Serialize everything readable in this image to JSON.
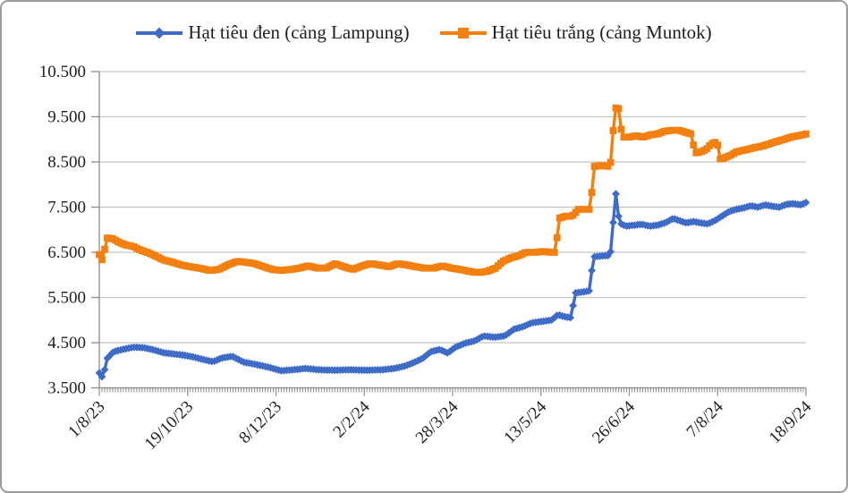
{
  "colors": {
    "black_pepper_series": "#3e6bc6",
    "white_pepper_series": "#f28010",
    "gridline": "#c3c3c3",
    "axis": "#8c8c8c",
    "text": "#1f1f1f",
    "frame_border": "#9b9b9b"
  },
  "chart_data": {
    "type": "line",
    "title": "",
    "xlabel": "",
    "ylabel": "",
    "legend_position": "top-center",
    "grid": "horizontal",
    "ylim": [
      3500,
      10500
    ],
    "y_step": 1000,
    "y_tick_labels": [
      "3.500",
      "4.500",
      "5.500",
      "6.500",
      "7.500",
      "8.500",
      "9.500",
      "10.500"
    ],
    "x_tick_labels": [
      "1/8/23",
      "19/10/23",
      "8/12/23",
      "2/2/24",
      "28/3/24",
      "13/5/24",
      "26/6/24",
      "7/8/24",
      "18/9/24"
    ],
    "x_axis_note": "daily price series from 1/8/23 to 18/9/24; points given as [fraction_of_x_range, price]",
    "series": [
      {
        "name": "Hạt tiêu đen (cảng Lampung)",
        "color": "#3e6bc6",
        "marker": "diamond",
        "points": [
          [
            0,
            3830
          ],
          [
            0.005,
            3720
          ],
          [
            0.011,
            4150
          ],
          [
            0.02,
            4300
          ],
          [
            0.033,
            4350
          ],
          [
            0.048,
            4400
          ],
          [
            0.062,
            4390
          ],
          [
            0.075,
            4350
          ],
          [
            0.09,
            4280
          ],
          [
            0.105,
            4250
          ],
          [
            0.121,
            4220
          ],
          [
            0.134,
            4180
          ],
          [
            0.149,
            4120
          ],
          [
            0.161,
            4080
          ],
          [
            0.173,
            4160
          ],
          [
            0.188,
            4200
          ],
          [
            0.204,
            4070
          ],
          [
            0.221,
            4020
          ],
          [
            0.239,
            3960
          ],
          [
            0.257,
            3880
          ],
          [
            0.274,
            3900
          ],
          [
            0.292,
            3930
          ],
          [
            0.311,
            3900
          ],
          [
            0.333,
            3890
          ],
          [
            0.355,
            3900
          ],
          [
            0.378,
            3890
          ],
          [
            0.4,
            3900
          ],
          [
            0.418,
            3930
          ],
          [
            0.434,
            3990
          ],
          [
            0.448,
            4080
          ],
          [
            0.458,
            4160
          ],
          [
            0.469,
            4300
          ],
          [
            0.482,
            4350
          ],
          [
            0.493,
            4270
          ],
          [
            0.504,
            4400
          ],
          [
            0.518,
            4490
          ],
          [
            0.531,
            4540
          ],
          [
            0.544,
            4650
          ],
          [
            0.559,
            4620
          ],
          [
            0.574,
            4650
          ],
          [
            0.587,
            4800
          ],
          [
            0.599,
            4850
          ],
          [
            0.612,
            4940
          ],
          [
            0.626,
            4970
          ],
          [
            0.64,
            5000
          ],
          [
            0.649,
            5120
          ],
          [
            0.657,
            5080
          ],
          [
            0.668,
            5050
          ],
          [
            0.673,
            5600
          ],
          [
            0.683,
            5620
          ],
          [
            0.694,
            5650
          ],
          [
            0.699,
            6400
          ],
          [
            0.711,
            6420
          ],
          [
            0.723,
            6430
          ],
          [
            0.731,
            7800
          ],
          [
            0.736,
            7150
          ],
          [
            0.745,
            7080
          ],
          [
            0.756,
            7100
          ],
          [
            0.768,
            7120
          ],
          [
            0.779,
            7080
          ],
          [
            0.79,
            7100
          ],
          [
            0.802,
            7160
          ],
          [
            0.812,
            7250
          ],
          [
            0.821,
            7200
          ],
          [
            0.831,
            7150
          ],
          [
            0.841,
            7180
          ],
          [
            0.851,
            7150
          ],
          [
            0.861,
            7130
          ],
          [
            0.871,
            7200
          ],
          [
            0.881,
            7300
          ],
          [
            0.891,
            7400
          ],
          [
            0.901,
            7450
          ],
          [
            0.911,
            7480
          ],
          [
            0.922,
            7530
          ],
          [
            0.932,
            7500
          ],
          [
            0.942,
            7550
          ],
          [
            0.952,
            7520
          ],
          [
            0.962,
            7500
          ],
          [
            0.972,
            7560
          ],
          [
            0.982,
            7580
          ],
          [
            0.992,
            7550
          ],
          [
            1,
            7600
          ]
        ]
      },
      {
        "name": "Hạt tiêu trắng (cảng Muntok)",
        "color": "#f28010",
        "marker": "square",
        "points": [
          [
            0,
            6450
          ],
          [
            0.005,
            6300
          ],
          [
            0.01,
            6820
          ],
          [
            0.019,
            6800
          ],
          [
            0.028,
            6720
          ],
          [
            0.038,
            6660
          ],
          [
            0.048,
            6630
          ],
          [
            0.058,
            6550
          ],
          [
            0.068,
            6500
          ],
          [
            0.078,
            6430
          ],
          [
            0.091,
            6330
          ],
          [
            0.104,
            6280
          ],
          [
            0.116,
            6220
          ],
          [
            0.129,
            6180
          ],
          [
            0.142,
            6150
          ],
          [
            0.156,
            6100
          ],
          [
            0.169,
            6120
          ],
          [
            0.182,
            6220
          ],
          [
            0.195,
            6300
          ],
          [
            0.207,
            6280
          ],
          [
            0.22,
            6250
          ],
          [
            0.233,
            6180
          ],
          [
            0.245,
            6120
          ],
          [
            0.258,
            6100
          ],
          [
            0.271,
            6120
          ],
          [
            0.283,
            6150
          ],
          [
            0.296,
            6200
          ],
          [
            0.308,
            6150
          ],
          [
            0.321,
            6150
          ],
          [
            0.334,
            6250
          ],
          [
            0.346,
            6180
          ],
          [
            0.359,
            6120
          ],
          [
            0.372,
            6200
          ],
          [
            0.384,
            6250
          ],
          [
            0.397,
            6220
          ],
          [
            0.41,
            6180
          ],
          [
            0.422,
            6250
          ],
          [
            0.435,
            6220
          ],
          [
            0.448,
            6180
          ],
          [
            0.46,
            6150
          ],
          [
            0.473,
            6150
          ],
          [
            0.486,
            6200
          ],
          [
            0.498,
            6150
          ],
          [
            0.511,
            6120
          ],
          [
            0.523,
            6080
          ],
          [
            0.536,
            6050
          ],
          [
            0.549,
            6080
          ],
          [
            0.561,
            6150
          ],
          [
            0.571,
            6300
          ],
          [
            0.583,
            6380
          ],
          [
            0.593,
            6420
          ],
          [
            0.604,
            6500
          ],
          [
            0.617,
            6500
          ],
          [
            0.628,
            6520
          ],
          [
            0.64,
            6500
          ],
          [
            0.646,
            6500
          ],
          [
            0.65,
            7250
          ],
          [
            0.66,
            7300
          ],
          [
            0.669,
            7300
          ],
          [
            0.678,
            7450
          ],
          [
            0.688,
            7450
          ],
          [
            0.695,
            7450
          ],
          [
            0.7,
            8400
          ],
          [
            0.711,
            8420
          ],
          [
            0.723,
            8400
          ],
          [
            0.73,
            9700
          ],
          [
            0.735,
            9680
          ],
          [
            0.74,
            9050
          ],
          [
            0.75,
            9050
          ],
          [
            0.76,
            9080
          ],
          [
            0.77,
            9050
          ],
          [
            0.78,
            9100
          ],
          [
            0.79,
            9120
          ],
          [
            0.8,
            9180
          ],
          [
            0.81,
            9200
          ],
          [
            0.821,
            9200
          ],
          [
            0.831,
            9150
          ],
          [
            0.838,
            9120
          ],
          [
            0.843,
            8700
          ],
          [
            0.851,
            8720
          ],
          [
            0.859,
            8780
          ],
          [
            0.866,
            8900
          ],
          [
            0.874,
            8950
          ],
          [
            0.879,
            8550
          ],
          [
            0.886,
            8600
          ],
          [
            0.894,
            8650
          ],
          [
            0.901,
            8720
          ],
          [
            0.909,
            8750
          ],
          [
            0.918,
            8780
          ],
          [
            0.928,
            8820
          ],
          [
            0.938,
            8850
          ],
          [
            0.948,
            8900
          ],
          [
            0.958,
            8950
          ],
          [
            0.969,
            9000
          ],
          [
            0.979,
            9050
          ],
          [
            0.989,
            9080
          ],
          [
            0.995,
            9100
          ],
          [
            1,
            9120
          ]
        ]
      }
    ]
  }
}
